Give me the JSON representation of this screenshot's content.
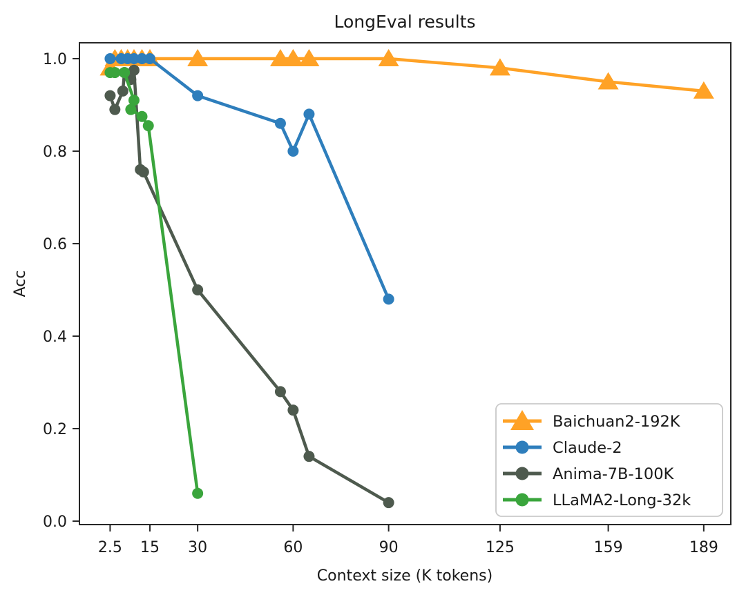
{
  "chart_data": {
    "type": "line",
    "title": "LongEval results",
    "xlabel": "Context size (K tokens)",
    "ylabel": "Acc",
    "grid": false,
    "legend_position": "lower right",
    "xlim": [
      -7.14,
      197.5
    ],
    "ylim": [
      -0.0075,
      1.0343
    ],
    "x_ticks": [
      2.5,
      15,
      30,
      60,
      90,
      125,
      159,
      189
    ],
    "x_tick_labels": [
      "2.5",
      "15",
      "30",
      "60",
      "90",
      "125",
      "159",
      "189"
    ],
    "y_ticks": [
      0.0,
      0.2,
      0.4,
      0.6,
      0.8,
      1.0
    ],
    "y_tick_labels": [
      "0.0",
      "0.2",
      "0.4",
      "0.6",
      "0.8",
      "1.0"
    ],
    "series": [
      {
        "name": "Baichuan2-192K",
        "color": "#FFA226",
        "marker": "triangle",
        "points": [
          [
            2.5,
            0.98
          ],
          [
            4,
            1.0
          ],
          [
            6,
            1.0
          ],
          [
            8,
            1.0
          ],
          [
            10,
            1.0
          ],
          [
            12.5,
            1.0
          ],
          [
            15,
            1.0
          ],
          [
            30,
            1.0
          ],
          [
            56,
            1.0
          ],
          [
            60,
            1.0
          ],
          [
            65,
            1.0
          ],
          [
            90,
            1.0
          ],
          [
            125,
            0.98
          ],
          [
            159,
            0.95
          ],
          [
            189,
            0.93
          ]
        ]
      },
      {
        "name": "Claude-2",
        "color": "#2E7EBC",
        "marker": "circle",
        "points": [
          [
            2.5,
            1.0
          ],
          [
            6,
            1.0
          ],
          [
            8,
            1.0
          ],
          [
            10,
            1.0
          ],
          [
            12.5,
            1.0
          ],
          [
            15,
            1.0
          ],
          [
            30,
            0.92
          ],
          [
            56,
            0.86
          ],
          [
            60,
            0.8
          ],
          [
            65,
            0.88
          ],
          [
            90,
            0.48
          ]
        ]
      },
      {
        "name": "Anima-7B-100K",
        "color": "#4E5A4E",
        "marker": "circle",
        "points": [
          [
            2.5,
            0.92
          ],
          [
            4,
            0.89
          ],
          [
            6.5,
            0.93
          ],
          [
            7,
            0.97
          ],
          [
            9,
            0.955
          ],
          [
            10,
            0.975
          ],
          [
            12,
            0.76
          ],
          [
            13,
            0.755
          ],
          [
            30,
            0.5
          ],
          [
            56,
            0.28
          ],
          [
            60,
            0.24
          ],
          [
            65,
            0.14
          ],
          [
            90,
            0.04
          ]
        ]
      },
      {
        "name": "LLaMA2-Long-32k",
        "color": "#3AA53C",
        "marker": "circle",
        "points": [
          [
            2.5,
            0.97
          ],
          [
            4,
            0.97
          ],
          [
            7,
            0.97
          ],
          [
            10,
            0.91
          ],
          [
            9,
            0.89
          ],
          [
            12.5,
            0.875
          ],
          [
            14.5,
            0.855
          ],
          [
            30,
            0.06
          ]
        ]
      }
    ]
  }
}
